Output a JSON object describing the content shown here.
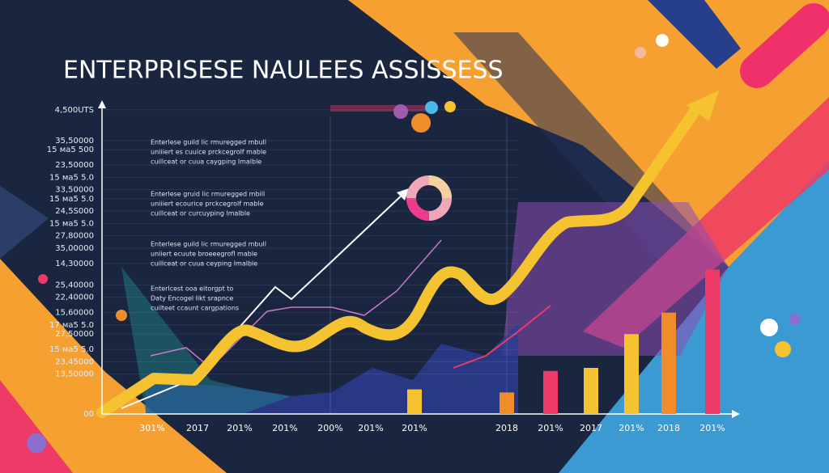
{
  "chart_data": {
    "type": "bar",
    "title": "ENTERPRISESE NAULEES ASSISSESS",
    "annotations": [
      "Enterlese guild lic rmuregged mbull",
      "uniiiert es cuuice prckcegrolf mable",
      "cuillceat or cuua caygping lmalble",
      "Enterlese gruid lic rmuregged mbill",
      "uniiiert ecourice prckcegrolf mable",
      "cuillceat or curcuyping lmalble",
      "Enterlese guild lic rmuregged mbull",
      "uniiert ecuute broeeegrofl mable",
      "cuillceat or cuua ceyping lmalble",
      "Enterlcest ooa eitorgpt to",
      "Daty Encogel likt srapnce",
      "cuilteet ccaunt cargpations"
    ],
    "categories": [
      "301%",
      "2017",
      "201%",
      "201%",
      "200%",
      "201%",
      "201%",
      "2018",
      "201%",
      "2017",
      "201%",
      "2018",
      "201%"
    ],
    "values": [
      null,
      null,
      null,
      null,
      null,
      null,
      8,
      7,
      14,
      15,
      26,
      33,
      47
    ],
    "colors": [
      "#f5c330",
      "#f5c330",
      "#f5c330",
      "#f5c330",
      "#f5c330",
      "#f5c330",
      "#f5c330",
      "#f08c2a",
      "#ee3a66",
      "#f5c330",
      "#f5c330",
      "#f08c2a",
      "#ee3a66"
    ],
    "ylim": [
      0,
      100
    ],
    "yticks": [
      {
        "value": 0,
        "label": "00"
      },
      {
        "value": 13,
        "label": "13,50000"
      },
      {
        "value": 17,
        "label": "23,45000"
      },
      {
        "value": 21,
        "label": "15 ма5 5.0"
      },
      {
        "value": 26,
        "label": "27,50000"
      },
      {
        "value": 29,
        "label": "17 ма5 5.0"
      },
      {
        "value": 33,
        "label": "15,60000"
      },
      {
        "value": 38,
        "label": "22,40000"
      },
      {
        "value": 42,
        "label": "25,40000"
      },
      {
        "value": 49,
        "label": "14,30000"
      },
      {
        "value": 54,
        "label": "35,00000"
      },
      {
        "value": 58,
        "label": "27,80000"
      },
      {
        "value": 62,
        "label": "15 ма5 5.0"
      },
      {
        "value": 66,
        "label": "24,5S000"
      },
      {
        "value": 70,
        "label": "15 ма5 5.0"
      },
      {
        "value": 73,
        "label": "33,50000"
      },
      {
        "value": 77,
        "label": "15 ма5 5.0"
      },
      {
        "value": 81,
        "label": "23,50000"
      },
      {
        "value": 86,
        "label": "15 ма5 500"
      },
      {
        "value": 89,
        "label": "35,50000"
      },
      {
        "value": 99,
        "label": "4,500UTS"
      }
    ],
    "grid": true
  }
}
